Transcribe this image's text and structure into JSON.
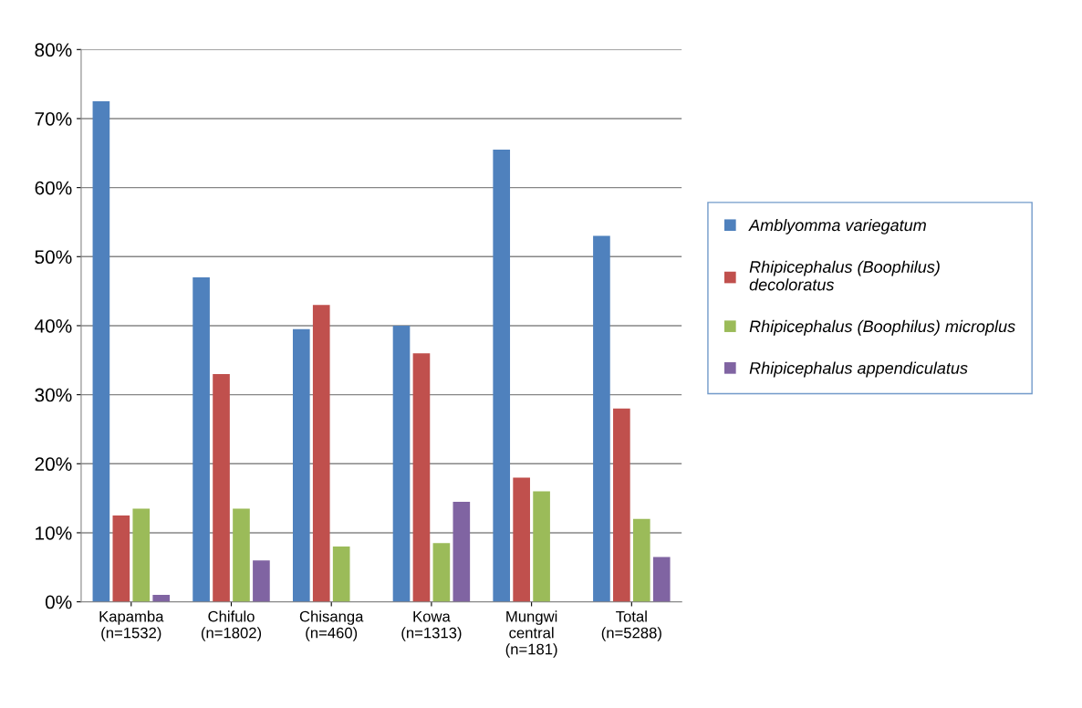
{
  "chart_data": {
    "type": "bar",
    "categories": [
      "Kapamba\n(n=1532)",
      "Chifulo\n(n=1802)",
      "Chisanga\n(n=460)",
      "Kowa\n(n=1313)",
      "Mungwi\ncentral\n(n=181)",
      "Total\n(n=5288)"
    ],
    "series": [
      {
        "name": "Amblyomma variegatum",
        "color": "#4f81bd",
        "values": [
          72.5,
          47,
          39.5,
          40,
          65.5,
          53
        ]
      },
      {
        "name": "Rhipicephalus (Boophilus)\ndecoloratus",
        "color": "#c0504d",
        "values": [
          12.5,
          33,
          43,
          36,
          18,
          28
        ]
      },
      {
        "name": "Rhipicephalus (Boophilus) microplus",
        "color": "#9bbb59",
        "values": [
          13.5,
          13.5,
          8,
          8.5,
          16,
          12
        ]
      },
      {
        "name": "Rhipicephalus appendiculatus",
        "color": "#8064a2",
        "values": [
          1,
          6,
          0,
          14.5,
          0,
          6.5
        ]
      }
    ],
    "ylim": [
      0,
      80
    ],
    "yticks": [
      {
        "value": 0,
        "label": "0%"
      },
      {
        "value": 10,
        "label": "10%"
      },
      {
        "value": 20,
        "label": "20%"
      },
      {
        "value": 30,
        "label": "30%"
      },
      {
        "value": 40,
        "label": "40%"
      },
      {
        "value": 50,
        "label": "50%"
      },
      {
        "value": 60,
        "label": "60%"
      },
      {
        "value": 70,
        "label": "70%"
      },
      {
        "value": 80,
        "label": "80%"
      }
    ],
    "grid": "y",
    "legend": "right"
  }
}
